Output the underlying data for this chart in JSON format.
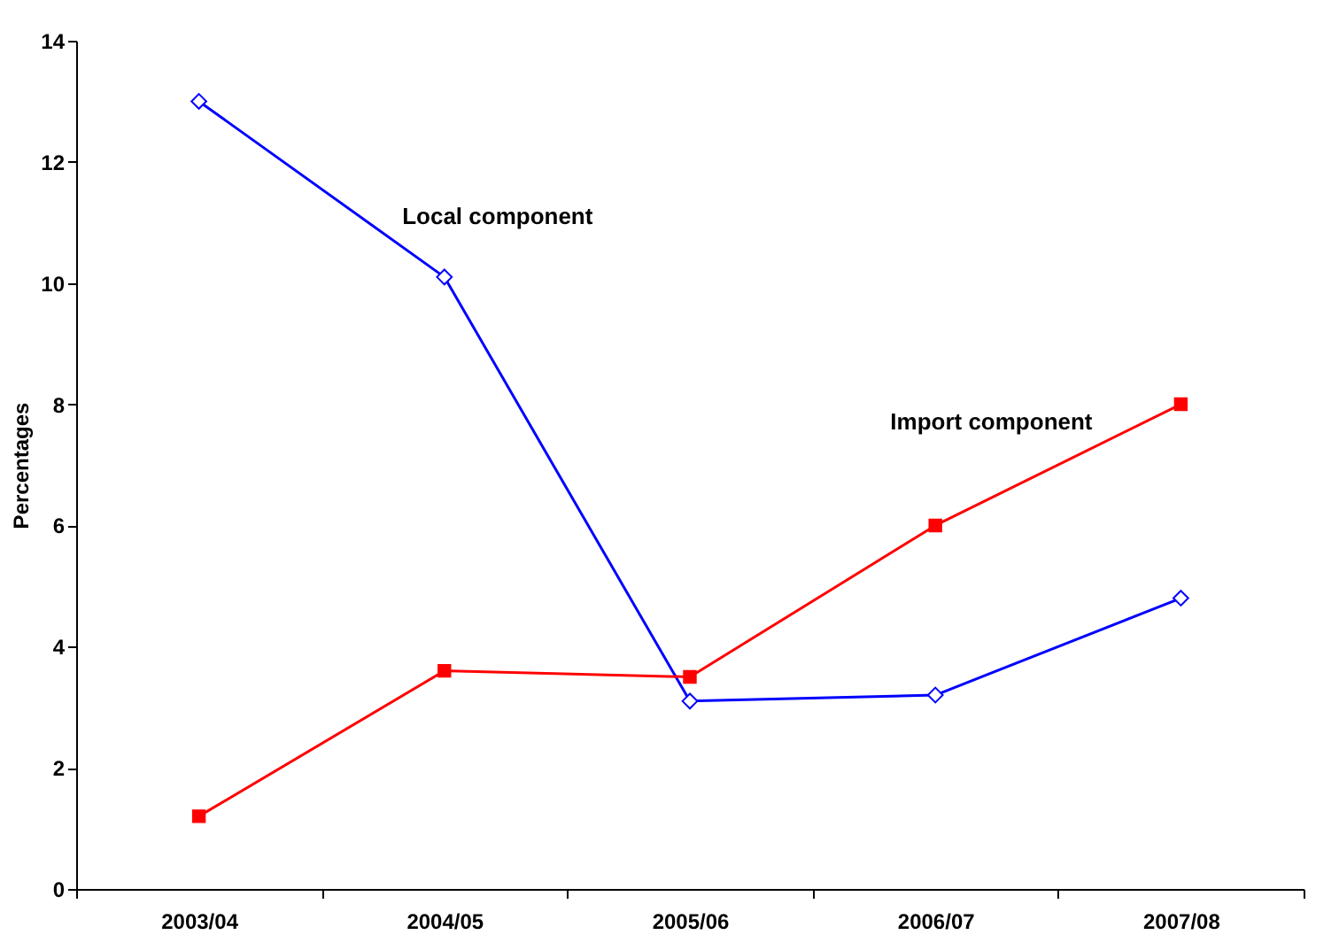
{
  "chart_data": {
    "type": "line",
    "ylabel": "Percentages",
    "categories": [
      "2003/04",
      "2004/05",
      "2005/06",
      "2006/07",
      "2007/08"
    ],
    "series": [
      {
        "name": "Local component",
        "color": "#0000ff",
        "marker": "diamond",
        "values": [
          13.0,
          10.1,
          3.1,
          3.2,
          4.8
        ]
      },
      {
        "name": "Import component",
        "color": "#ff0000",
        "marker": "square",
        "values": [
          1.2,
          3.6,
          3.5,
          6.0,
          8.0
        ]
      }
    ],
    "ylim": [
      0,
      14
    ],
    "yticks": [
      0,
      2,
      4,
      6,
      8,
      10,
      12,
      14
    ],
    "grid": false
  }
}
